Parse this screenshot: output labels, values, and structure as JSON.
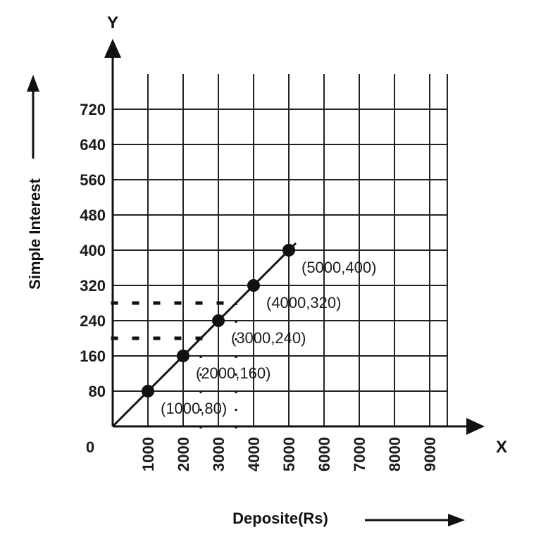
{
  "chart_data": {
    "type": "line",
    "xlabel": "Deposite(Rs)",
    "ylabel": "Simple Interest",
    "x_axis_letter": "X",
    "y_axis_letter": "Y",
    "origin_label": "0",
    "xlim": [
      0,
      9500
    ],
    "ylim": [
      0,
      800
    ],
    "x_ticks": [
      1000,
      2000,
      3000,
      4000,
      5000,
      6000,
      7000,
      8000,
      9000
    ],
    "x_tick_labels": [
      "1000",
      "2000",
      "3000",
      "4000",
      "5000",
      "6000",
      "7000",
      "8000",
      "9000"
    ],
    "y_ticks": [
      80,
      160,
      240,
      320,
      400,
      480,
      560,
      640,
      720
    ],
    "y_tick_labels": [
      "80",
      "160",
      "240",
      "320",
      "400",
      "480",
      "560",
      "640",
      "720"
    ],
    "grid": true,
    "line": {
      "x": [
        0,
        5000
      ],
      "y": [
        0,
        400
      ]
    },
    "series": [
      {
        "x": [
          1000,
          2000,
          3000,
          4000,
          5000
        ],
        "y": [
          80,
          160,
          240,
          320,
          400
        ],
        "point_labels": [
          "(1000,80)",
          "(2000,160)",
          "(3000,240)",
          "(4000,320)",
          "(5000,400)"
        ]
      }
    ],
    "guide_lines": [
      {
        "y": 200,
        "x_end": 2500
      },
      {
        "y": 280,
        "x_end": 3500
      },
      {
        "x": 2500,
        "y_end": 200
      },
      {
        "x": 3500,
        "y_end": 280
      }
    ]
  }
}
